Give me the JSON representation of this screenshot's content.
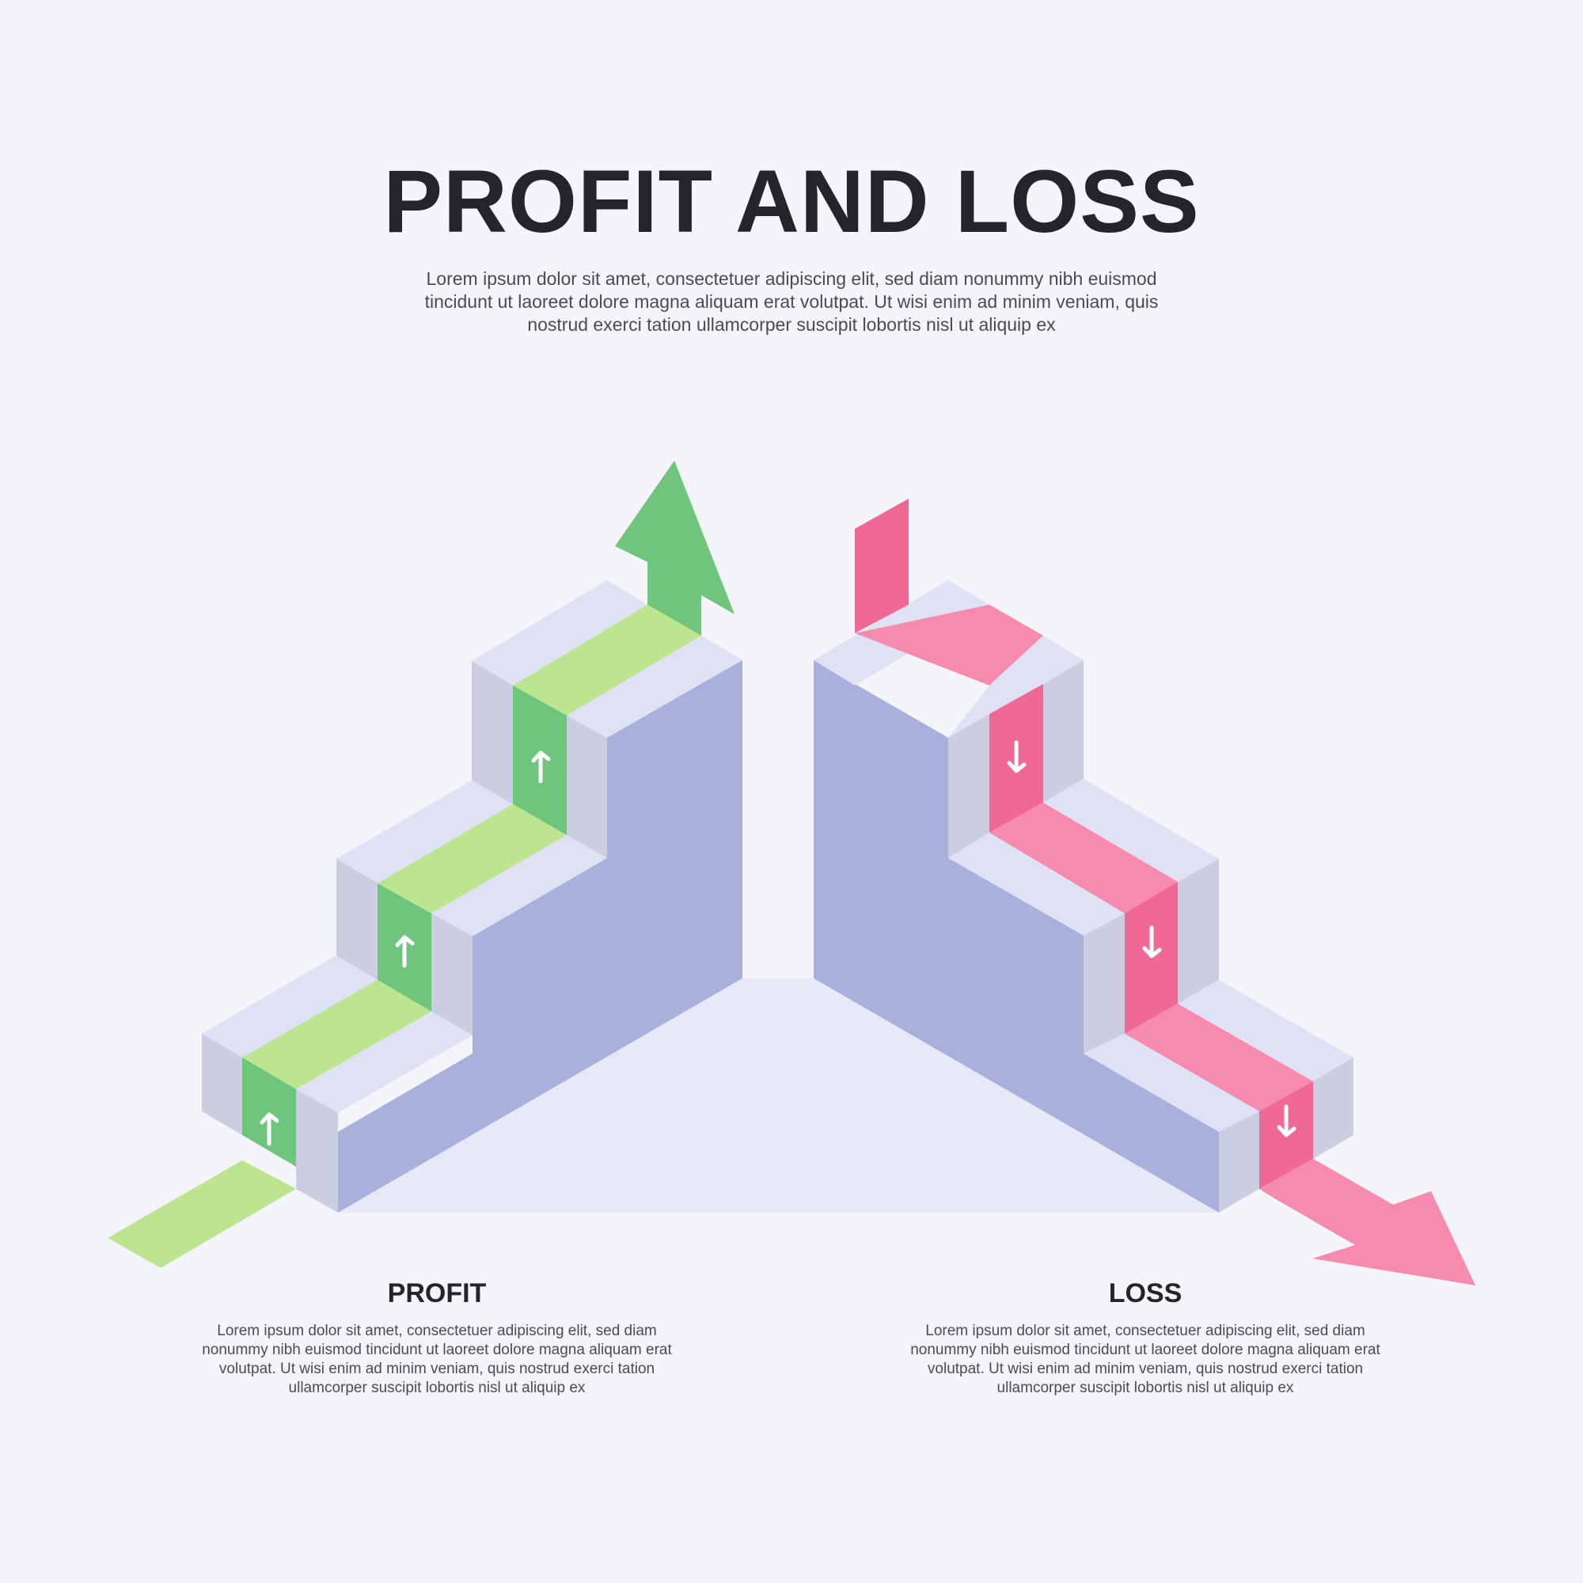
{
  "header": {
    "title": "PROFIT AND LOSS",
    "subtitle": "Lorem ipsum dolor sit amet, consectetuer adipiscing elit, sed diam nonummy nibh euismod tincidunt ut laoreet dolore magna aliquam erat volutpat. Ut wisi enim ad minim veniam, quis nostrud exerci tation ullamcorper suscipit lobortis nisl ut aliquip ex"
  },
  "profit": {
    "title": "PROFIT",
    "body": "Lorem ipsum dolor sit amet, consectetuer adipiscing elit, sed diam nonummy nibh euismod tincidunt ut laoreet dolore magna aliquam erat volutpat. Ut wisi enim ad minim veniam, quis nostrud exerci tation ullamcorper suscipit lobortis nisl ut aliquip ex",
    "icon": "up-arrow-icon",
    "colors": {
      "stripe_top": "#bbe58f",
      "stripe_riser": "#70c57c",
      "arrow": "#70c57c"
    }
  },
  "loss": {
    "title": "LOSS",
    "body": "Lorem ipsum dolor sit amet, consectetuer adipiscing elit, sed diam nonummy nibh euismod tincidunt ut laoreet dolore magna aliquam erat volutpat. Ut wisi enim ad minim veniam, quis nostrud exerci tation ullamcorper suscipit lobortis nisl ut aliquip ex",
    "icon": "down-arrow-icon",
    "colors": {
      "stripe_top": "#f78bad",
      "stripe_riser": "#f06894",
      "arrow": "#f78bad"
    }
  },
  "stairs": {
    "colors": {
      "tread": "#dfe1f5",
      "riser": "#cbcee2",
      "side": "#a9b0db",
      "floor": "#e7e9f8"
    }
  }
}
